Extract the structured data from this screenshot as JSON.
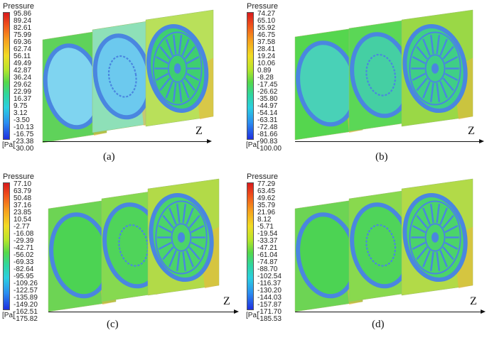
{
  "panels": [
    {
      "caption": "(a)",
      "legend_title": "Pressure",
      "unit": "[Pa]",
      "axis_label": "Z",
      "ticks": [
        "95.86",
        "89.24",
        "82.61",
        "75.99",
        "69.36",
        "62.74",
        "56.11",
        "49.49",
        "42.87",
        "36.24",
        "29.62",
        "22.99",
        "16.37",
        "9.75",
        "3.12",
        "-3.50",
        "-10.13",
        "-16.75",
        "-23.38",
        "-30.00"
      ]
    },
    {
      "caption": "(b)",
      "legend_title": "Pressure",
      "unit": "[Pa]",
      "axis_label": "Z",
      "ticks": [
        "74.27",
        "65.10",
        "55.92",
        "46.75",
        "37.58",
        "28.41",
        "19.24",
        "10.06",
        "0.89",
        "-8.28",
        "-17.45",
        "-26.62",
        "-35.80",
        "-44.97",
        "-54.14",
        "-63.31",
        "-72.48",
        "-81.66",
        "-90.83",
        "-100.00"
      ]
    },
    {
      "caption": "(c)",
      "legend_title": "Pressure",
      "unit": "[Pa]",
      "axis_label": "Z",
      "ticks": [
        "77.10",
        "63.79",
        "50.48",
        "37.16",
        "23.85",
        "10.54",
        "-2.77",
        "-16.08",
        "-29.39",
        "-42.71",
        "-56.02",
        "-69.33",
        "-82.64",
        "-95.95",
        "-109.26",
        "-122.57",
        "-135.89",
        "-149.20",
        "-162.51",
        "-175.82"
      ]
    },
    {
      "caption": "(d)",
      "legend_title": "Pressure",
      "unit": "[Pa]",
      "axis_label": "Z",
      "ticks": [
        "77.29",
        "63.45",
        "49.62",
        "35.79",
        "21.96",
        "8.12",
        "-5.71",
        "-19.54",
        "-33.37",
        "-47.21",
        "-61.04",
        "-74.87",
        "-88.70",
        "-102.54",
        "-116.37",
        "-130.20",
        "-144.03",
        "-157.87",
        "-171.70",
        "-185.53"
      ]
    }
  ]
}
